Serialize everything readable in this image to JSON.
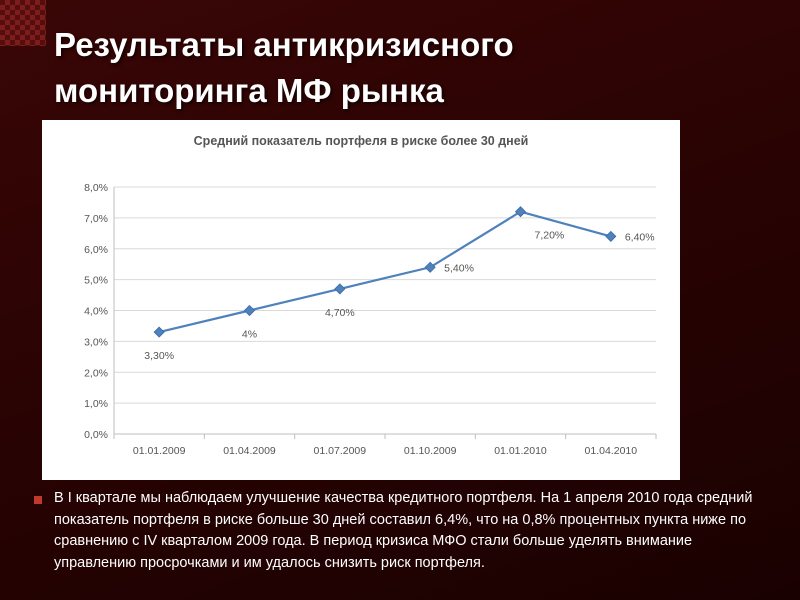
{
  "slide": {
    "title_line1": "Результаты антикризисного",
    "title_line2": "мониторинга МФ рынка",
    "bullet_text": "В I квартале мы наблюдаем улучшение качества кредитного портфеля. На 1 апреля 2010 года средний показатель портфеля в риске больше 30 дней составил 6,4%, что на 0,8% процентных пункта ниже по сравнению с IV кварталом 2009 года.  В период кризиса МФО стали больше уделять внимание управлению просрочками и им удалось снизить риск портфеля.",
    "bullet_icon": "square-bullet-icon"
  },
  "colors": {
    "background": "#2a0303",
    "line": "#4f81bd",
    "bullet": "#c0392b"
  },
  "chart_data": {
    "type": "line",
    "title": "Средний показатель портфеля в риске более 30 дней",
    "categories": [
      "01.01.2009",
      "01.04.2009",
      "01.07.2009",
      "01.10.2009",
      "01.01.2010",
      "01.04.2010"
    ],
    "values": [
      3.3,
      4.0,
      4.7,
      5.4,
      7.2,
      6.4
    ],
    "data_labels": [
      "3,30%",
      "4%",
      "4,70%",
      "5,40%",
      "7,20%",
      "6,40%"
    ],
    "yticks": [
      "0,0%",
      "1,0%",
      "2,0%",
      "3,0%",
      "4,0%",
      "5,0%",
      "6,0%",
      "7,0%",
      "8,0%"
    ],
    "ylim": [
      0,
      8
    ],
    "grid": true,
    "legend": "none"
  }
}
